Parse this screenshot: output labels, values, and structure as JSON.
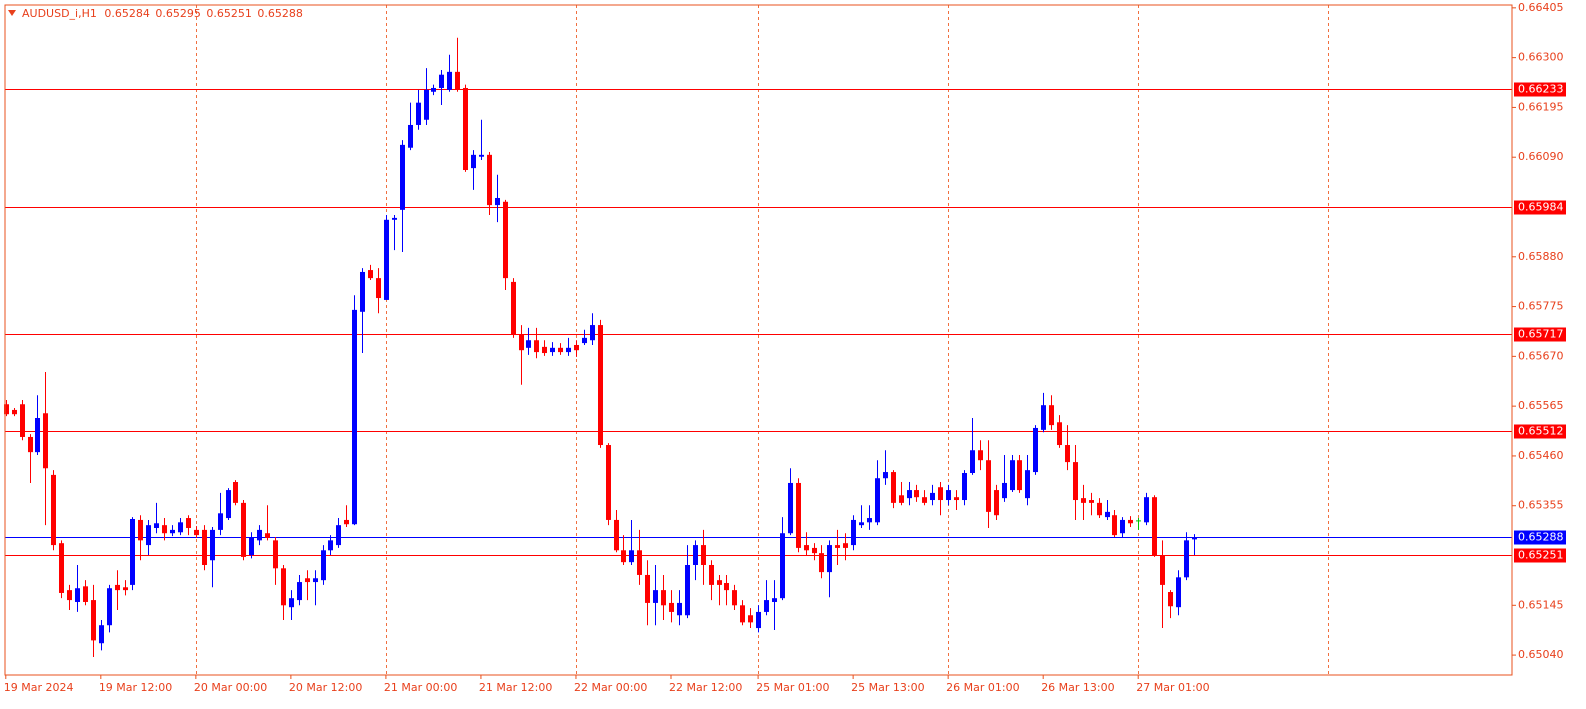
{
  "chart_data": {
    "type": "candlestick",
    "symbol": "AUDUSD_i,H1",
    "header_values": [
      0.65284,
      0.65295,
      0.65251,
      0.65288
    ],
    "bull_color": "#0000ff",
    "bear_color": "#ff0000",
    "doji_color": "#00c800",
    "xlim": [
      -0.1,
      190.2
    ],
    "ylim": [
      0.64998,
      0.66411
    ],
    "xticks": [
      {
        "value": 0,
        "label": "19 Mar 2024"
      },
      {
        "value": 12,
        "label": "19 Mar 12:00"
      },
      {
        "value": 24,
        "label": "20 Mar 00:00"
      },
      {
        "value": 36,
        "label": "20 Mar 12:00"
      },
      {
        "value": 48,
        "label": "21 Mar 00:00"
      },
      {
        "value": 60,
        "label": "21 Mar 12:00"
      },
      {
        "value": 72,
        "label": "22 Mar 00:00"
      },
      {
        "value": 84,
        "label": "22 Mar 12:00"
      },
      {
        "value": 95,
        "label": "25 Mar 01:00"
      },
      {
        "value": 107,
        "label": "25 Mar 13:00"
      },
      {
        "value": 119,
        "label": "26 Mar 01:00"
      },
      {
        "value": 131,
        "label": "26 Mar 13:00"
      },
      {
        "value": 143,
        "label": "27 Mar 01:00"
      }
    ],
    "vgrid": [
      24,
      48,
      72,
      95,
      119,
      143,
      167
    ],
    "yticks": [
      0.66405,
      {
        "value": 0.663,
        "label": "0.66300"
      },
      0.66195,
      {
        "value": 0.6609,
        "label": "0.66090"
      },
      {
        "value": 0.6588,
        "label": "0.65880"
      },
      0.65775,
      {
        "value": 0.6567,
        "label": "0.65670"
      },
      0.65565,
      {
        "value": 0.6546,
        "label": "0.65460"
      },
      0.65355,
      0.65145,
      {
        "value": 0.6504,
        "label": "0.65040"
      }
    ],
    "levels": [
      0.66233,
      0.65984,
      0.65717,
      0.65512,
      0.65251
    ],
    "level_color": "#ff0000",
    "bid": 0.65288,
    "bid_color": "#0000ff",
    "open": [
      0.65569,
      0.65557,
      0.65569,
      0.655,
      0.65468,
      0.6555,
      0.6542,
      0.65276,
      0.65177,
      0.65152,
      0.65185,
      0.65156,
      0.65065,
      0.65103,
      0.65188,
      0.65183,
      0.65188,
      0.65325,
      0.65272,
      0.65308,
      0.65314,
      0.65297,
      0.65299,
      0.65329,
      0.65304,
      0.65304,
      0.6524,
      0.65304,
      0.65329,
      0.65405,
      0.65361,
      0.65251,
      0.65282,
      0.65297,
      0.65282,
      0.65223,
      0.65141,
      0.65156,
      0.65202,
      0.65194,
      0.65198,
      0.65261,
      0.65272,
      0.65325,
      0.65316,
      0.65764,
      0.65852,
      0.65835,
      0.65789,
      0.65958,
      0.65979,
      0.6611,
      0.66158,
      0.66169,
      0.66228,
      0.66236,
      0.66232,
      0.6627,
      0.66236,
      0.66067,
      0.66091,
      0.66095,
      0.65989,
      0.65996,
      0.65827,
      0.65715,
      0.65688,
      0.65704,
      0.6569,
      0.65679,
      0.65688,
      0.65679,
      0.65694,
      0.65698,
      0.65704,
      0.65736,
      0.65483,
      0.65325,
      0.65261,
      0.65236,
      0.65261,
      0.65209,
      0.6515,
      0.65177,
      0.6515,
      0.65124,
      0.65124,
      0.6523,
      0.65272,
      0.6523,
      0.65198,
      0.65192,
      0.65177,
      0.65145,
      0.65124,
      0.65097,
      0.65131,
      0.65152,
      0.6516,
      0.65297,
      0.65403,
      0.65272,
      0.65266,
      0.65255,
      0.65215,
      0.65272,
      0.65276,
      0.65272,
      0.65314,
      0.6532,
      0.6532,
      0.65413,
      0.65426,
      0.65377,
      0.65371,
      0.65388,
      0.65373,
      0.65367,
      0.65394,
      0.65367,
      0.65373,
      0.65367,
      0.65424,
      0.65472,
      0.65451,
      0.65388,
      0.65371,
      0.65388,
      0.65451,
      0.65371,
      0.65426,
      0.65515,
      0.65567,
      0.65531,
      0.65483,
      0.65447,
      0.65371,
      0.65367,
      0.65361,
      0.65331,
      0.65335,
      0.65297,
      0.65325,
      0.65323,
      0.6532,
      0.65373,
      0.65251,
      0.65173,
      0.65141,
      0.65204,
      0.65284
    ],
    "high": [
      0.65578,
      0.65561,
      0.65578,
      0.65506,
      0.65588,
      0.65637,
      0.6543,
      0.65282,
      0.65188,
      0.6523,
      0.65198,
      0.65188,
      0.65114,
      0.65188,
      0.65219,
      0.65198,
      0.65331,
      0.65335,
      0.65325,
      0.65361,
      0.65329,
      0.65314,
      0.65329,
      0.65335,
      0.65312,
      0.65314,
      0.6531,
      0.65382,
      0.65392,
      0.65409,
      0.65367,
      0.65299,
      0.65314,
      0.65356,
      0.65289,
      0.6523,
      0.65177,
      0.65209,
      0.65219,
      0.65219,
      0.65272,
      0.65293,
      0.65329,
      0.65356,
      0.65799,
      0.65856,
      0.65863,
      0.65856,
      0.65968,
      0.65968,
      0.66126,
      0.66205,
      0.66232,
      0.66278,
      0.66243,
      0.66274,
      0.66306,
      0.66342,
      0.66243,
      0.66105,
      0.66169,
      0.66101,
      0.66053,
      0.66,
      0.65835,
      0.65736,
      0.6573,
      0.6573,
      0.65704,
      0.657,
      0.65698,
      0.65709,
      0.65704,
      0.65726,
      0.65761,
      0.65747,
      0.65487,
      0.65346,
      0.65293,
      0.65325,
      0.65304,
      0.6524,
      0.6523,
      0.65209,
      0.65177,
      0.65177,
      0.65272,
      0.65282,
      0.65304,
      0.6524,
      0.65209,
      0.65209,
      0.65188,
      0.65156,
      0.65139,
      0.65145,
      0.65198,
      0.65198,
      0.65331,
      0.65434,
      0.65413,
      0.65299,
      0.65276,
      0.65272,
      0.65282,
      0.65304,
      0.65297,
      0.65335,
      0.65356,
      0.65356,
      0.65451,
      0.65472,
      0.6543,
      0.65405,
      0.65405,
      0.65399,
      0.65388,
      0.65399,
      0.65405,
      0.65399,
      0.65388,
      0.6543,
      0.6554,
      0.65493,
      0.65493,
      0.65399,
      0.65462,
      0.65462,
      0.65462,
      0.65462,
      0.65525,
      0.65593,
      0.65588,
      0.65546,
      0.65525,
      0.65483,
      0.65399,
      0.65382,
      0.65371,
      0.65367,
      0.65346,
      0.65331,
      0.65333,
      0.65329,
      0.65382,
      0.65377,
      0.65282,
      0.65177,
      0.65219,
      0.65299,
      0.65295
    ],
    "low": [
      0.65544,
      0.65544,
      0.65493,
      0.65403,
      0.65462,
      0.65314,
      0.65261,
      0.6516,
      0.65135,
      0.65131,
      0.65145,
      0.65036,
      0.6505,
      0.65088,
      0.65135,
      0.65166,
      0.65177,
      0.6524,
      0.65251,
      0.65297,
      0.65282,
      0.65291,
      0.65293,
      0.65293,
      0.65287,
      0.65219,
      0.65183,
      0.65293,
      0.65325,
      0.65356,
      0.6524,
      0.65244,
      0.65272,
      0.65282,
      0.65188,
      0.65114,
      0.65114,
      0.65145,
      0.65156,
      0.65145,
      0.65188,
      0.65251,
      0.65266,
      0.6531,
      0.65314,
      0.65677,
      0.65831,
      0.65761,
      0.65789,
      0.65894,
      0.6589,
      0.66105,
      0.66148,
      0.66158,
      0.66221,
      0.662,
      0.66228,
      0.66228,
      0.66059,
      0.66021,
      0.66084,
      0.65968,
      0.65953,
      0.6581,
      0.65709,
      0.6561,
      0.65673,
      0.65666,
      0.65671,
      0.65671,
      0.65673,
      0.65671,
      0.65669,
      0.65694,
      0.65694,
      0.65477,
      0.65314,
      0.65257,
      0.6523,
      0.6523,
      0.65188,
      0.65103,
      0.65103,
      0.65114,
      0.65109,
      0.65103,
      0.65118,
      0.65198,
      0.65188,
      0.65156,
      0.65145,
      0.65145,
      0.65135,
      0.65103,
      0.65097,
      0.65088,
      0.65124,
      0.65093,
      0.65156,
      0.65293,
      0.65257,
      0.65251,
      0.6524,
      0.65202,
      0.65162,
      0.6523,
      0.6524,
      0.65261,
      0.65308,
      0.65304,
      0.65314,
      0.65399,
      0.6535,
      0.65356,
      0.65356,
      0.65363,
      0.65356,
      0.65356,
      0.65335,
      0.65356,
      0.65346,
      0.65356,
      0.6542,
      0.6543,
      0.65308,
      0.65325,
      0.65363,
      0.65384,
      0.65382,
      0.65356,
      0.6542,
      0.6551,
      0.65515,
      0.65477,
      0.6543,
      0.65325,
      0.65325,
      0.65335,
      0.65329,
      0.65325,
      0.65289,
      0.65289,
      0.6531,
      0.65304,
      0.65314,
      0.65247,
      0.65097,
      0.65118,
      0.65124,
      0.65198,
      0.65251
    ],
    "close": [
      0.65548,
      0.65548,
      0.655,
      0.65468,
      0.6554,
      0.65434,
      0.65272,
      0.65171,
      0.65156,
      0.65181,
      0.65152,
      0.65071,
      0.65103,
      0.65181,
      0.65177,
      0.65177,
      0.65327,
      0.65282,
      0.65314,
      0.65318,
      0.65297,
      0.65304,
      0.6532,
      0.65308,
      0.65293,
      0.6523,
      0.65304,
      0.65339,
      0.65388,
      0.65361,
      0.65247,
      0.65289,
      0.65304,
      0.65287,
      0.65223,
      0.65145,
      0.6516,
      0.65194,
      0.65194,
      0.65202,
      0.65261,
      0.65282,
      0.65314,
      0.65316,
      0.65768,
      0.65848,
      0.65835,
      0.65793,
      0.65958,
      0.65962,
      0.66116,
      0.66158,
      0.66205,
      0.66232,
      0.66236,
      0.66264,
      0.6627,
      0.66232,
      0.66063,
      0.66095,
      0.66095,
      0.65989,
      0.66004,
      0.65835,
      0.65715,
      0.65683,
      0.65704,
      0.65679,
      0.65677,
      0.65688,
      0.65679,
      0.65688,
      0.65683,
      0.65709,
      0.65736,
      0.65483,
      0.65325,
      0.65261,
      0.65236,
      0.65261,
      0.65209,
      0.6515,
      0.65177,
      0.65145,
      0.65131,
      0.6515,
      0.6523,
      0.65272,
      0.6523,
      0.65188,
      0.65188,
      0.65177,
      0.65145,
      0.65109,
      0.65109,
      0.65131,
      0.65156,
      0.6516,
      0.65297,
      0.65403,
      0.65266,
      0.65261,
      0.65255,
      0.65215,
      0.65272,
      0.65266,
      0.65266,
      0.65325,
      0.6532,
      0.65329,
      0.65413,
      0.65426,
      0.65361,
      0.65361,
      0.65388,
      0.65373,
      0.65361,
      0.65382,
      0.65367,
      0.65388,
      0.65367,
      0.65424,
      0.65472,
      0.65451,
      0.65342,
      0.65335,
      0.65403,
      0.65451,
      0.65388,
      0.6543,
      0.65519,
      0.65567,
      0.65525,
      0.65483,
      0.65447,
      0.65367,
      0.65361,
      0.65361,
      0.65335,
      0.65342,
      0.65293,
      0.65325,
      0.65318,
      0.65323,
      0.65373,
      0.65251,
      0.65188,
      0.65143,
      0.65204,
      0.65282,
      0.65288
    ]
  }
}
